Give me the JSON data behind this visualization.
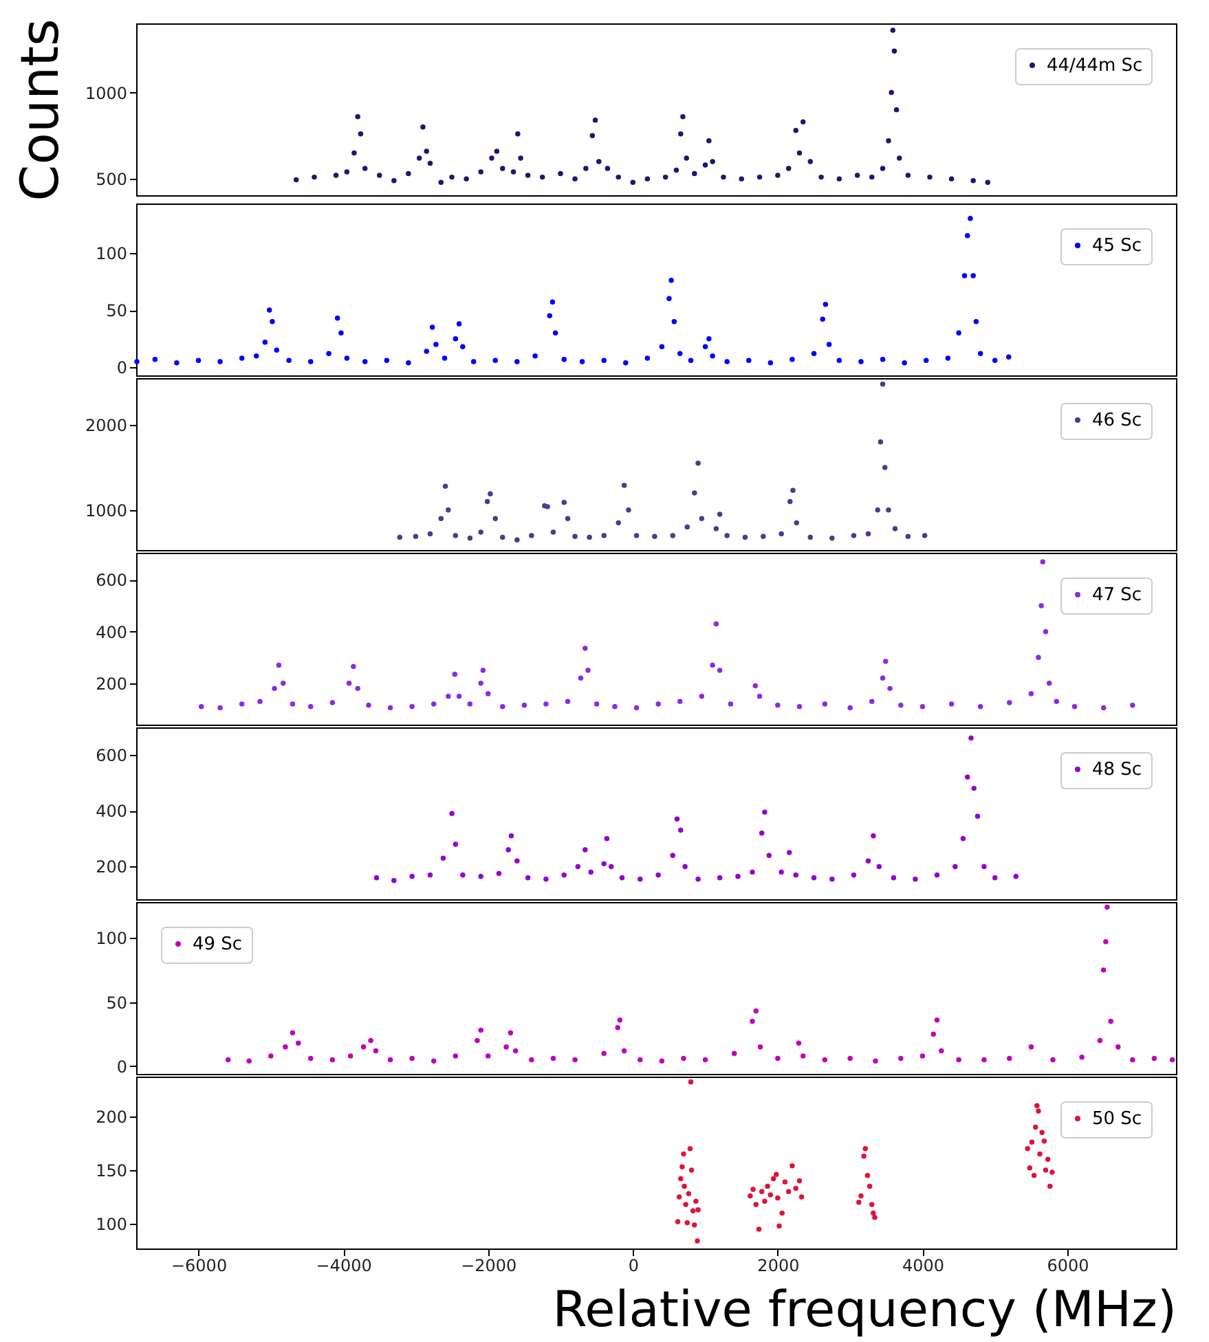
{
  "chart_data": [
    {
      "type": "scatter",
      "ylabel": "Counts",
      "xlim": [
        -6860,
        7500
      ],
      "ylim": [
        405,
        1400
      ],
      "yticks": [
        500,
        1000
      ],
      "tick_labels": "y",
      "marker": "circle",
      "legend": "top right",
      "series": [
        {
          "name": "44/44m Sc",
          "color": "#191970",
          "x": [
            -4650,
            -4400,
            -4100,
            -3950,
            -3850,
            -3800,
            -3760,
            -3700,
            -3500,
            -3300,
            -3100,
            -2950,
            -2900,
            -2850,
            -2800,
            -2650,
            -2500,
            -2300,
            -2100,
            -1950,
            -1880,
            -1800,
            -1650,
            -1590,
            -1550,
            -1450,
            -1250,
            -1000,
            -800,
            -650,
            -560,
            -520,
            -470,
            -350,
            -200,
            0,
            200,
            450,
            600,
            660,
            690,
            740,
            850,
            1000,
            1050,
            1100,
            1250,
            1500,
            1750,
            2000,
            2150,
            2250,
            2300,
            2350,
            2450,
            2600,
            2850,
            3100,
            3300,
            3450,
            3530,
            3570,
            3590,
            3610,
            3640,
            3680,
            3800,
            4100,
            4400,
            4700,
            4900
          ],
          "values": [
            495,
            510,
            520,
            540,
            650,
            860,
            760,
            560,
            520,
            490,
            530,
            620,
            800,
            660,
            590,
            480,
            510,
            500,
            540,
            620,
            660,
            560,
            540,
            760,
            620,
            520,
            510,
            530,
            500,
            560,
            750,
            840,
            600,
            560,
            510,
            480,
            500,
            510,
            550,
            760,
            860,
            620,
            530,
            580,
            720,
            600,
            510,
            500,
            510,
            520,
            560,
            780,
            650,
            830,
            600,
            510,
            500,
            520,
            510,
            560,
            720,
            1000,
            1360,
            1240,
            900,
            620,
            520,
            510,
            500,
            490,
            480
          ]
        }
      ]
    },
    {
      "type": "scatter",
      "xlim": [
        -6860,
        7500
      ],
      "ylim": [
        -7,
        143
      ],
      "yticks": [
        0,
        50,
        100
      ],
      "tick_labels": "y",
      "marker": "circle",
      "legend": "top right",
      "series": [
        {
          "name": "45 Sc",
          "color": "#0000ff",
          "x": [
            -6850,
            -6600,
            -6300,
            -6000,
            -5700,
            -5400,
            -5200,
            -5080,
            -5020,
            -4980,
            -4920,
            -4750,
            -4450,
            -4200,
            -4080,
            -4030,
            -3950,
            -3700,
            -3400,
            -3100,
            -2850,
            -2770,
            -2720,
            -2600,
            -2450,
            -2400,
            -2350,
            -2200,
            -1900,
            -1600,
            -1350,
            -1150,
            -1110,
            -1070,
            -950,
            -700,
            -400,
            -100,
            200,
            400,
            500,
            530,
            570,
            650,
            800,
            1000,
            1050,
            1100,
            1300,
            1600,
            1900,
            2200,
            2500,
            2620,
            2660,
            2710,
            2850,
            3150,
            3450,
            3750,
            4050,
            4350,
            4500,
            4580,
            4620,
            4660,
            4700,
            4740,
            4800,
            5000,
            5190
          ],
          "values": [
            5,
            7,
            4,
            6,
            5,
            8,
            10,
            22,
            50,
            40,
            15,
            6,
            5,
            12,
            43,
            30,
            8,
            5,
            6,
            4,
            14,
            35,
            20,
            8,
            25,
            38,
            18,
            5,
            6,
            5,
            10,
            45,
            57,
            30,
            7,
            5,
            6,
            4,
            8,
            18,
            60,
            76,
            40,
            12,
            6,
            18,
            25,
            10,
            5,
            6,
            4,
            7,
            12,
            42,
            55,
            20,
            6,
            5,
            7,
            4,
            6,
            8,
            30,
            80,
            115,
            130,
            80,
            40,
            12,
            6,
            9
          ]
        }
      ]
    },
    {
      "type": "scatter",
      "xlim": [
        -6860,
        7500
      ],
      "ylim": [
        530,
        2550
      ],
      "yticks": [
        1000,
        2000
      ],
      "tick_labels": "y",
      "marker": "circle",
      "legend": "top right",
      "series": [
        {
          "name": "46 Sc",
          "color": "#483d8b",
          "x": [
            -3220,
            -3000,
            -2800,
            -2650,
            -2590,
            -2550,
            -2450,
            -2250,
            -2100,
            -2010,
            -1970,
            -1900,
            -1800,
            -1600,
            -1400,
            -1220,
            -1180,
            -1100,
            -950,
            -900,
            -800,
            -600,
            -400,
            -200,
            -120,
            -60,
            50,
            300,
            550,
            750,
            850,
            900,
            950,
            1150,
            1200,
            1300,
            1550,
            1800,
            2050,
            2170,
            2210,
            2260,
            2450,
            2750,
            3050,
            3250,
            3380,
            3420,
            3450,
            3480,
            3530,
            3620,
            3800,
            4030
          ],
          "values": [
            680,
            690,
            720,
            900,
            1280,
            1000,
            700,
            670,
            740,
            1100,
            1190,
            900,
            680,
            650,
            700,
            1050,
            1040,
            740,
            1090,
            900,
            690,
            680,
            700,
            850,
            1290,
            1000,
            700,
            690,
            700,
            800,
            1200,
            1550,
            900,
            780,
            950,
            700,
            680,
            690,
            720,
            1100,
            1230,
            850,
            680,
            670,
            700,
            720,
            1000,
            1800,
            2480,
            1500,
            1000,
            780,
            690,
            700
          ]
        }
      ]
    },
    {
      "type": "scatter",
      "xlim": [
        -6860,
        7500
      ],
      "ylim": [
        40,
        705
      ],
      "yticks": [
        200,
        400,
        600
      ],
      "tick_labels": "y",
      "marker": "circle",
      "legend": "top right",
      "series": [
        {
          "name": "47 Sc",
          "color": "#8a2be2",
          "x": [
            -5960,
            -5700,
            -5400,
            -5150,
            -4950,
            -4890,
            -4830,
            -4700,
            -4450,
            -4150,
            -3920,
            -3860,
            -3800,
            -3650,
            -3350,
            -3050,
            -2750,
            -2550,
            -2460,
            -2400,
            -2250,
            -2100,
            -2070,
            -2000,
            -1800,
            -1500,
            -1200,
            -900,
            -720,
            -660,
            -620,
            -500,
            -250,
            50,
            350,
            650,
            950,
            1100,
            1150,
            1200,
            1350,
            1690,
            1750,
            2000,
            2300,
            2650,
            3000,
            3300,
            3450,
            3490,
            3550,
            3700,
            4000,
            4400,
            4800,
            5200,
            5500,
            5600,
            5640,
            5660,
            5700,
            5750,
            5850,
            6100,
            6500,
            6900
          ],
          "values": [
            110,
            105,
            120,
            130,
            180,
            270,
            200,
            120,
            110,
            125,
            200,
            265,
            180,
            115,
            105,
            110,
            120,
            150,
            235,
            150,
            120,
            200,
            250,
            160,
            110,
            115,
            120,
            130,
            220,
            335,
            250,
            120,
            110,
            105,
            120,
            130,
            150,
            270,
            430,
            250,
            120,
            190,
            150,
            115,
            110,
            120,
            105,
            130,
            220,
            285,
            180,
            115,
            110,
            120,
            110,
            125,
            160,
            300,
            500,
            670,
            400,
            200,
            130,
            110,
            105,
            115
          ]
        }
      ]
    },
    {
      "type": "scatter",
      "xlim": [
        -6860,
        7500
      ],
      "ylim": [
        83,
        698
      ],
      "yticks": [
        200,
        400,
        600
      ],
      "tick_labels": "y",
      "marker": "circle",
      "legend": "top right",
      "series": [
        {
          "name": "48 Sc",
          "color": "#9400d3",
          "x": [
            -3540,
            -3300,
            -3050,
            -2800,
            -2620,
            -2500,
            -2450,
            -2350,
            -2100,
            -1850,
            -1720,
            -1680,
            -1600,
            -1450,
            -1200,
            -950,
            -760,
            -660,
            -580,
            -400,
            -360,
            -300,
            -150,
            100,
            350,
            550,
            610,
            660,
            720,
            900,
            1200,
            1450,
            1650,
            1780,
            1820,
            1880,
            2050,
            2160,
            2250,
            2500,
            2750,
            3050,
            3250,
            3320,
            3400,
            3600,
            3900,
            4200,
            4450,
            4560,
            4620,
            4670,
            4710,
            4760,
            4850,
            5000,
            5290
          ],
          "values": [
            160,
            150,
            165,
            170,
            230,
            390,
            280,
            170,
            165,
            175,
            260,
            310,
            220,
            160,
            155,
            170,
            200,
            260,
            180,
            210,
            300,
            200,
            160,
            155,
            170,
            240,
            370,
            330,
            200,
            155,
            160,
            165,
            180,
            320,
            395,
            240,
            180,
            250,
            170,
            160,
            155,
            170,
            220,
            310,
            200,
            160,
            155,
            170,
            200,
            300,
            520,
            660,
            480,
            380,
            200,
            160,
            165
          ]
        }
      ]
    },
    {
      "type": "scatter",
      "xlim": [
        -6860,
        7500
      ],
      "ylim": [
        -6,
        128
      ],
      "yticks": [
        0,
        50,
        100
      ],
      "tick_labels": "y",
      "marker": "circle",
      "legend": "top left",
      "series": [
        {
          "name": "49 Sc",
          "color": "#bf00bf",
          "x": [
            -5590,
            -5300,
            -5000,
            -4800,
            -4700,
            -4620,
            -4450,
            -4150,
            -3900,
            -3720,
            -3620,
            -3550,
            -3350,
            -3050,
            -2750,
            -2450,
            -2150,
            -2100,
            -2000,
            -1750,
            -1690,
            -1620,
            -1400,
            -1100,
            -800,
            -400,
            -210,
            -180,
            -120,
            100,
            400,
            700,
            1000,
            1400,
            1650,
            1700,
            1760,
            2000,
            2290,
            2350,
            2650,
            3000,
            3350,
            3700,
            4000,
            4150,
            4200,
            4260,
            4500,
            4850,
            5200,
            5500,
            5800,
            6200,
            6450,
            6500,
            6530,
            6550,
            6600,
            6700,
            6900,
            7200,
            7450
          ],
          "values": [
            5,
            4,
            8,
            15,
            26,
            18,
            6,
            5,
            8,
            15,
            20,
            12,
            5,
            6,
            4,
            8,
            20,
            28,
            8,
            15,
            26,
            12,
            5,
            6,
            5,
            10,
            30,
            36,
            12,
            5,
            4,
            6,
            5,
            10,
            35,
            43,
            15,
            6,
            18,
            8,
            5,
            6,
            4,
            6,
            8,
            25,
            36,
            12,
            5,
            5,
            6,
            15,
            5,
            7,
            20,
            75,
            97,
            124,
            35,
            15,
            5,
            6,
            5
          ]
        }
      ]
    },
    {
      "type": "scatter",
      "xlabel": "Relative frequency (MHz)",
      "xlim": [
        -6860,
        7500
      ],
      "ylim": [
        77,
        237
      ],
      "xticks": [
        -6000,
        -4000,
        -2000,
        0,
        2000,
        4000,
        6000
      ],
      "yticks": [
        100,
        150,
        200
      ],
      "marker": "circle",
      "legend": "top right",
      "series": [
        {
          "name": "50 Sc",
          "color": "#dc143c",
          "x": [
            620,
            640,
            660,
            680,
            700,
            710,
            730,
            750,
            770,
            790,
            800,
            810,
            830,
            850,
            870,
            890,
            900,
            1620,
            1660,
            1700,
            1740,
            1780,
            1820,
            1860,
            1900,
            1940,
            1980,
            2000,
            2020,
            2060,
            2100,
            2150,
            2200,
            2250,
            2300,
            2330,
            3120,
            3150,
            3190,
            3210,
            3240,
            3270,
            3300,
            3320,
            3340,
            5450,
            5480,
            5510,
            5540,
            5560,
            5580,
            5600,
            5620,
            5650,
            5680,
            5700,
            5730,
            5760,
            5790
          ],
          "values": [
            102,
            125,
            142,
            153,
            165,
            135,
            118,
            101,
            128,
            170,
            232,
            150,
            112,
            99,
            121,
            84,
            113,
            126,
            132,
            118,
            95,
            130,
            121,
            135,
            127,
            142,
            146,
            124,
            98,
            110,
            139,
            130,
            154,
            133,
            140,
            125,
            120,
            126,
            163,
            170,
            145,
            135,
            118,
            110,
            106,
            170,
            152,
            176,
            145,
            190,
            210,
            205,
            165,
            185,
            177,
            150,
            160,
            135,
            148
          ]
        }
      ]
    }
  ]
}
